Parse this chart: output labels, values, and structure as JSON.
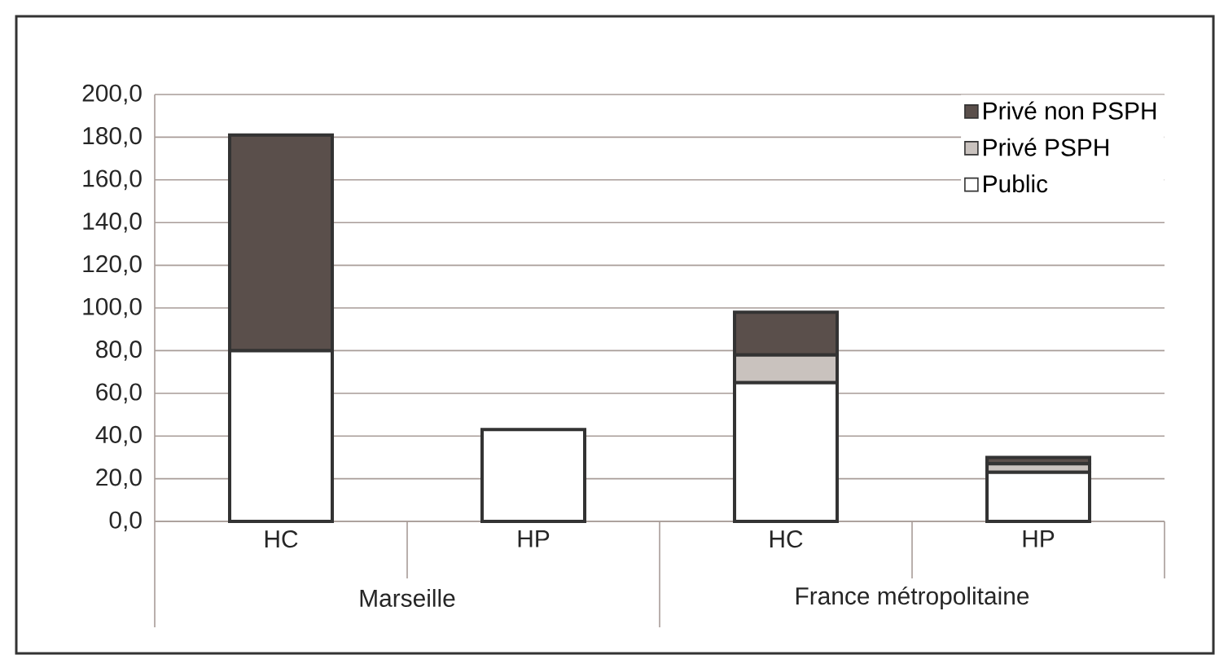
{
  "chart_data": {
    "type": "bar",
    "stacked": true,
    "categories": [
      "HC",
      "HP",
      "HC",
      "HP"
    ],
    "series": [
      {
        "name": "Public",
        "color": "#ffffff",
        "values": [
          80,
          43,
          65,
          23
        ]
      },
      {
        "name": "Privé PSPH",
        "color": "#c9c2be",
        "values": [
          0,
          0,
          13,
          4
        ]
      },
      {
        "name": "Privé non PSPH",
        "color": "#5a4f4b",
        "values": [
          101,
          0,
          20,
          3
        ]
      }
    ],
    "ylim": [
      0,
      200
    ],
    "yticks": [
      {
        "value": 0,
        "label": "0,0"
      },
      {
        "value": 20,
        "label": "20,0"
      },
      {
        "value": 40,
        "label": "40,0"
      },
      {
        "value": 60,
        "label": "60,0"
      },
      {
        "value": 80,
        "label": "80,0"
      },
      {
        "value": 100,
        "label": "100,0"
      },
      {
        "value": 120,
        "label": "120,0"
      },
      {
        "value": 140,
        "label": "140,0"
      },
      {
        "value": 160,
        "label": "160,0"
      },
      {
        "value": 180,
        "label": "180,0"
      },
      {
        "value": 200,
        "label": "200,0"
      }
    ],
    "grid": "y",
    "legend": "top right",
    "annotations": [
      "Marseille",
      "France métropolitaine"
    ]
  }
}
